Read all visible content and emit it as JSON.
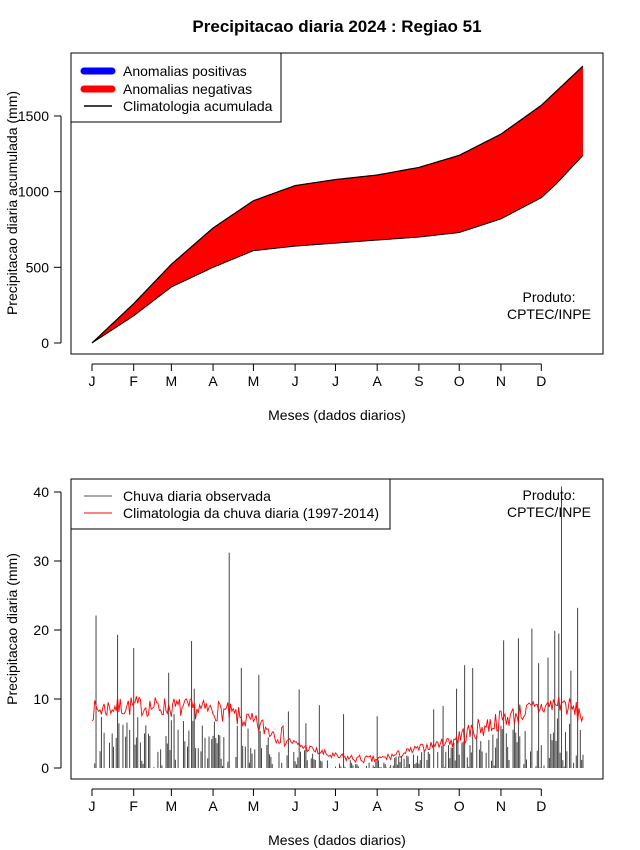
{
  "title": "Precipitacao diaria 2024 : Regiao 51",
  "chart_data": [
    {
      "type": "area",
      "xlabel": "Meses (dados diarios)",
      "ylabel": "Precipitacao diaria acumulada (mm)",
      "month_ticks": [
        "J",
        "F",
        "M",
        "A",
        "M",
        "J",
        "J",
        "A",
        "S",
        "O",
        "N",
        "D"
      ],
      "month_start_days": [
        1,
        32,
        60,
        91,
        121,
        152,
        182,
        213,
        244,
        274,
        305,
        335
      ],
      "y_ticks": [
        0,
        500,
        1000,
        1500
      ],
      "xlim": [
        1,
        366
      ],
      "ylim": [
        0,
        1850
      ],
      "legend": {
        "position": "top-left",
        "entries": [
          {
            "label": "Anomalias positivas",
            "color": "#0000ff"
          },
          {
            "label": "Anomalias negativas",
            "color": "#ff0000"
          },
          {
            "label": "Climatologia acumulada",
            "color": "#000000"
          }
        ]
      },
      "annotation": [
        "Produto:",
        "CPTEC/INPE"
      ],
      "climatology_knots": {
        "day": [
          1,
          32,
          60,
          91,
          121,
          152,
          182,
          213,
          244,
          274,
          305,
          335,
          366
        ],
        "value": [
          0,
          260,
          520,
          760,
          940,
          1040,
          1080,
          1110,
          1160,
          1240,
          1380,
          1570,
          1830
        ]
      },
      "observed_knots": {
        "day": [
          1,
          32,
          60,
          91,
          121,
          152,
          182,
          213,
          244,
          274,
          305,
          335,
          346,
          366
        ],
        "value": [
          0,
          180,
          370,
          500,
          610,
          640,
          660,
          680,
          700,
          730,
          820,
          960,
          1050,
          1240
        ]
      },
      "series": [
        {
          "name": "Climatologia acumulada",
          "color": "#000000"
        }
      ]
    },
    {
      "type": "bar",
      "xlabel": "Meses (dados diarios)",
      "ylabel": "Precipitacao diaria (mm)",
      "month_ticks": [
        "J",
        "F",
        "M",
        "A",
        "M",
        "J",
        "J",
        "A",
        "S",
        "O",
        "N",
        "D"
      ],
      "month_start_days": [
        1,
        32,
        60,
        91,
        121,
        152,
        182,
        213,
        244,
        274,
        305,
        335
      ],
      "y_ticks": [
        0,
        10,
        20,
        30,
        40
      ],
      "xlim": [
        1,
        366
      ],
      "ylim": [
        0,
        41
      ],
      "legend": {
        "position": "top-left",
        "entries": [
          {
            "label": "Chuva diaria observada",
            "color": "#555555"
          },
          {
            "label": "Climatologia da chuva diaria (1997-2014)",
            "color": "#ff0000"
          }
        ]
      },
      "annotation": [
        "Produto:",
        "CPTEC/INPE"
      ],
      "observed_spikes": [
        {
          "day": 4,
          "value": 22.1
        },
        {
          "day": 20,
          "value": 19.3
        },
        {
          "day": 32,
          "value": 17.4
        },
        {
          "day": 58,
          "value": 13.8
        },
        {
          "day": 75,
          "value": 18.4
        },
        {
          "day": 77,
          "value": 11.5
        },
        {
          "day": 103,
          "value": 31.2
        },
        {
          "day": 112,
          "value": 14.5
        },
        {
          "day": 125,
          "value": 13.5
        },
        {
          "day": 147,
          "value": 8.2
        },
        {
          "day": 155,
          "value": 11.4
        },
        {
          "day": 160,
          "value": 6.5
        },
        {
          "day": 170,
          "value": 9.1
        },
        {
          "day": 188,
          "value": 7.8
        },
        {
          "day": 213,
          "value": 7.5
        },
        {
          "day": 255,
          "value": 8.5
        },
        {
          "day": 262,
          "value": 9.0
        },
        {
          "day": 272,
          "value": 11.5
        },
        {
          "day": 278,
          "value": 14.9
        },
        {
          "day": 284,
          "value": 14.5
        },
        {
          "day": 307,
          "value": 18.5
        },
        {
          "day": 318,
          "value": 18.8
        },
        {
          "day": 328,
          "value": 20.2
        },
        {
          "day": 333,
          "value": 15.2
        },
        {
          "day": 340,
          "value": 16.0
        },
        {
          "day": 345,
          "value": 19.9
        },
        {
          "day": 348,
          "value": 19.5
        },
        {
          "day": 350,
          "value": 40.8
        },
        {
          "day": 357,
          "value": 14.1
        },
        {
          "day": 362,
          "value": 23.2
        },
        {
          "day": 364,
          "value": 5.5
        }
      ],
      "climatology_knots": {
        "day": [
          1,
          15,
          32,
          60,
          80,
          100,
          120,
          140,
          152,
          170,
          182,
          200,
          213,
          230,
          244,
          260,
          274,
          290,
          305,
          320,
          335,
          350,
          366
        ],
        "value": [
          8.3,
          8.8,
          9.0,
          8.8,
          8.5,
          8.2,
          6.5,
          5.0,
          3.5,
          2.3,
          1.6,
          1.3,
          1.2,
          2.0,
          2.8,
          3.6,
          4.5,
          5.8,
          7.0,
          8.0,
          8.8,
          9.5,
          7.5
        ]
      }
    }
  ]
}
